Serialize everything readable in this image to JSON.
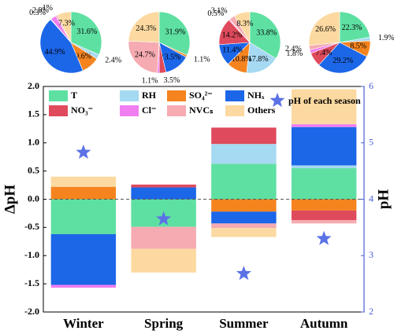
{
  "chart_data": [
    {
      "type": "bar",
      "stacked": true,
      "ylabel": "ΔpH",
      "y2label": "pH",
      "categories": [
        "Winter",
        "Spring",
        "Summer",
        "Autumn"
      ],
      "ylim": [
        -2,
        2
      ],
      "yticks": [
        {
          "value": -2,
          "label": "-2.0"
        },
        {
          "value": -1.5,
          "label": "-1.5"
        },
        {
          "value": -1,
          "label": "-1.0"
        },
        {
          "value": -0.5,
          "label": "-0.5"
        },
        {
          "value": 0,
          "label": "0.0"
        },
        {
          "value": 0.5,
          "label": "0.5"
        },
        {
          "value": 1,
          "label": "1.0"
        },
        {
          "value": 1.5,
          "label": "1.5"
        },
        {
          "value": 2,
          "label": "2.0"
        }
      ],
      "y2lim": [
        2,
        6
      ],
      "y2ticks": [
        2,
        3,
        4,
        5,
        6
      ],
      "y2color": "#4a5fd8",
      "series": [
        {
          "name": "T",
          "color": "#5ee0a2",
          "values": [
            -0.62,
            -0.49,
            0.63,
            0.55
          ]
        },
        {
          "name": "RH",
          "color": "#a6d9f2",
          "values": [
            null,
            null,
            0.35,
            0.05
          ]
        },
        {
          "name": "SO₄²⁻",
          "color": "#f5841f",
          "values": [
            0.22,
            null,
            -0.22,
            -0.2
          ]
        },
        {
          "name": "NHₓ",
          "color": "#1c66e8",
          "values": [
            -0.9,
            0.21,
            -0.21,
            0.68
          ]
        },
        {
          "name": "NO₃⁻",
          "color": "#df4a5c",
          "values": [
            null,
            0.05,
            0.29,
            -0.17
          ]
        },
        {
          "name": "Cl⁻",
          "color": "#f07ef0",
          "values": [
            -0.05,
            null,
            null,
            0.05
          ]
        },
        {
          "name": "NVCₛ",
          "color": "#f5abb1",
          "values": [
            null,
            -0.39,
            -0.08,
            -0.06
          ]
        },
        {
          "name": "Others",
          "color": "#fcd9a0",
          "values": [
            0.18,
            -0.42,
            -0.16,
            0.62
          ]
        },
        {
          "name": "pH of each season",
          "type": "scatter",
          "marker": "star",
          "axis": "y2",
          "color": "#5b72e6",
          "values": [
            4.83,
            3.65,
            2.68,
            3.3
          ]
        }
      ]
    },
    {
      "type": "pie",
      "colors": [
        "#5ee0a2",
        "#a6d9f2",
        "#f5841f",
        "#1c66e8",
        "#df4a5c",
        "#f07ef0",
        "#f5abb1",
        "#fcd9a0"
      ],
      "values": [
        31.6,
        2.4,
        9.6,
        44.9,
        0.3,
        2.9,
        1,
        7.3
      ],
      "value_labels": [
        "31.6%",
        "2.4%",
        "9.6%",
        "44.9%",
        "0.3%",
        "2.9%",
        "1%",
        "7.3%"
      ]
    },
    {
      "type": "pie",
      "colors": [
        "#5ee0a2",
        "#a6d9f2",
        "#f5841f",
        "#1c66e8",
        "#df4a5c",
        "#f07ef0",
        "#f5abb1",
        "#fcd9a0"
      ],
      "values": [
        31.9,
        null,
        1.1,
        13.5,
        3.5,
        1.1,
        24.7,
        24.3
      ],
      "value_labels": [
        "31.9%",
        null,
        "1.1%",
        "13.5%",
        "3.5%",
        "1.1%",
        "24.7%",
        "24.3%"
      ]
    },
    {
      "type": "pie",
      "colors": [
        "#5ee0a2",
        "#a6d9f2",
        "#f5841f",
        "#1c66e8",
        "#df4a5c",
        "#f07ef0",
        "#f5abb1",
        "#fcd9a0"
      ],
      "values": [
        33.8,
        17.8,
        10.8,
        11.4,
        14.2,
        0.5,
        3.1,
        8.3
      ],
      "value_labels": [
        "33.8%",
        "17.8%",
        "10.8%",
        "11.4%",
        "14.2%",
        "0.5%",
        "3.1%",
        "8.3%"
      ]
    },
    {
      "type": "pie",
      "colors": [
        "#5ee0a2",
        "#a6d9f2",
        "#f5841f",
        "#1c66e8",
        "#df4a5c",
        "#f07ef0",
        "#f5abb1",
        "#fcd9a0"
      ],
      "values": [
        22.3,
        1.9,
        8.5,
        29.2,
        7.4,
        1.8,
        2.4,
        26.6
      ],
      "value_labels": [
        "22.3%",
        "1.9%",
        "8.5%",
        "29.2%",
        "7.4%",
        "1.8%",
        "2.4%",
        "26.6%"
      ]
    }
  ]
}
